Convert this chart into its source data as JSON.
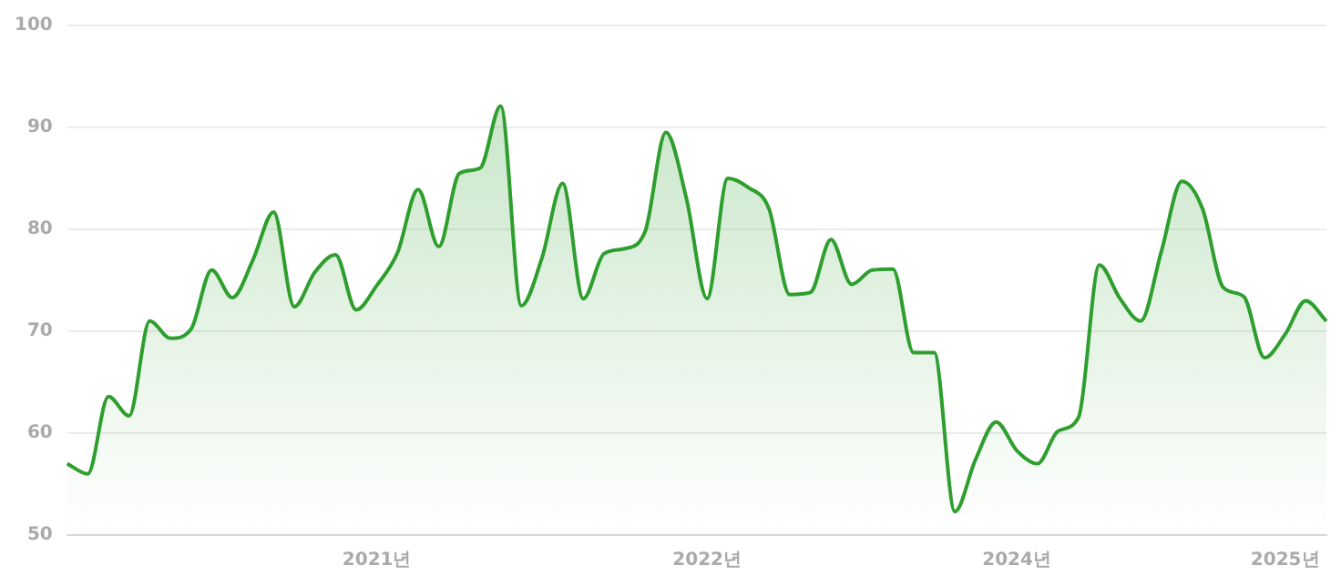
{
  "chart_data": {
    "type": "area",
    "categories": [
      null,
      null,
      null,
      null,
      null,
      null,
      null,
      null,
      null,
      null,
      null,
      null,
      null,
      null,
      null,
      "2021년",
      null,
      null,
      null,
      null,
      null,
      null,
      null,
      null,
      null,
      null,
      null,
      null,
      null,
      null,
      null,
      "2022년",
      null,
      null,
      null,
      null,
      null,
      null,
      null,
      null,
      null,
      null,
      null,
      null,
      null,
      null,
      "2024년",
      null,
      null,
      null,
      null,
      null,
      null,
      null,
      null,
      null,
      null,
      null,
      null,
      "2025년",
      null,
      null
    ],
    "series": [
      {
        "color": "#2e9e2e",
        "values": [
          57.0,
          56.0,
          63.6,
          61.7,
          71.0,
          69.3,
          70.2,
          76.0,
          73.3,
          77.0,
          81.7,
          72.4,
          75.8,
          77.5,
          72.1,
          74.5,
          77.7,
          83.9,
          78.3,
          85.5,
          86.0,
          92.1,
          72.5,
          77.2,
          84.5,
          73.2,
          77.6,
          78.1,
          79.8,
          89.5,
          83.0,
          73.2,
          85.0,
          84.1,
          82.0,
          73.6,
          73.8,
          79.0,
          74.6,
          76.0,
          76.1,
          67.9,
          67.9,
          52.3,
          57.4,
          61.1,
          58.3,
          57.0,
          60.2,
          61.6,
          76.5,
          73.2,
          71.0,
          77.8,
          84.7,
          82.0,
          74.3,
          73.4,
          67.4,
          69.7,
          73.0,
          71.0
        ]
      }
    ],
    "ylim": [
      50,
      100
    ],
    "yticks": [
      50,
      60,
      70,
      80,
      90,
      100
    ],
    "grid": "y",
    "legend": false,
    "marker": "none",
    "line_style": "solid"
  }
}
